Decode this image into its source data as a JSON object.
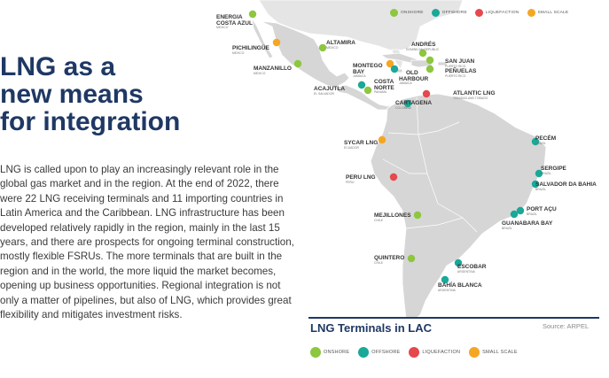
{
  "heading": {
    "line1": "LNG as a",
    "line2": "new means",
    "line3": "for integration"
  },
  "body_text": "LNG is called upon to play an increasingly relevant role in the global gas market and in the region. At the end of 2022, there were 22 LNG receiving terminals and 11 importing countries in Latin America and the Caribbean. LNG infrastructure has been developed relatively rapidly in the region, mainly in the last 15 years, and there are prospects for ongoing terminal construction, mostly flexible FSRUs. The more terminals that are built in the region and in the world, the more liquid the market becomes, opening up business opportunities. Regional integration is not only a matter of pipelines, but also of LNG, which provides great flexibility and mitigates investment risks.",
  "legend": [
    {
      "key": "onshore",
      "label": "ONSHORE",
      "color": "#8dc63f"
    },
    {
      "key": "offshore",
      "label": "OFFSHORE",
      "color": "#1aa898"
    },
    {
      "key": "liquefaction",
      "label": "LIQUEFACTION",
      "color": "#e5484d"
    },
    {
      "key": "small_scale",
      "label": "SMALL SCALE",
      "color": "#f5a623"
    }
  ],
  "terminals": [
    {
      "name": "ENERGIA",
      "name2": "COSTA AZUL",
      "country": "MEXICO",
      "type": "onshore"
    },
    {
      "name": "PICHILINGÜE",
      "country": "MEXICO",
      "type": "small_scale"
    },
    {
      "name": "ALTAMIRA",
      "country": "MEXICO",
      "type": "onshore"
    },
    {
      "name": "MANZANILLO",
      "country": "MEXICO",
      "type": "onshore"
    },
    {
      "name": "ANDRÉS",
      "country": "DOMINICAN REPUBLIC",
      "type": "onshore"
    },
    {
      "name": "MONTEGO",
      "name2": "BAY",
      "country": "JAMAICA",
      "type": "small_scale"
    },
    {
      "name": "OLD",
      "name2": "HARBOUR",
      "country": "JAMAICA",
      "type": "offshore"
    },
    {
      "name": "SAN JUAN",
      "country": "PUERTO RICO",
      "type": "onshore"
    },
    {
      "name": "PEÑUELAS",
      "country": "PUERTO RICO",
      "type": "onshore"
    },
    {
      "name": "COSTA",
      "name2": "NORTE",
      "country": "PANAMA",
      "type": "onshore"
    },
    {
      "name": "ACAJUTLA",
      "country": "EL SALVADOR",
      "type": "offshore"
    },
    {
      "name": "ATLANTIC LNG",
      "country": "TRINIDAD AND TOBAGO",
      "type": "liquefaction"
    },
    {
      "name": "CARTAGENA",
      "country": "COLOMBIA",
      "type": "offshore"
    },
    {
      "name": "SYCAR LNG",
      "country": "ECUADOR",
      "type": "small_scale"
    },
    {
      "name": "PECÉM",
      "country": "BRAZIL",
      "type": "offshore"
    },
    {
      "name": "SERGIPE",
      "country": "BRAZIL",
      "type": "offshore"
    },
    {
      "name": "SALVADOR DA BAHIA",
      "country": "BRAZIL",
      "type": "offshore"
    },
    {
      "name": "PERU LNG",
      "country": "PERU",
      "type": "liquefaction"
    },
    {
      "name": "PORT AÇU",
      "country": "BRAZIL",
      "type": "offshore"
    },
    {
      "name": "GUANABARA BAY",
      "country": "BRAZIL",
      "type": "offshore"
    },
    {
      "name": "MEJILLONES",
      "country": "CHILE",
      "type": "onshore"
    },
    {
      "name": "QUINTERO",
      "country": "CHILE",
      "type": "onshore"
    },
    {
      "name": "ESCOBAR",
      "country": "ARGENTINA",
      "type": "offshore"
    },
    {
      "name": "BAHÍA BLANCA",
      "country": "ARGENTINA",
      "type": "offshore"
    }
  ],
  "caption": {
    "title": "LNG Terminals in LAC",
    "source": "Source: ARPEL"
  }
}
